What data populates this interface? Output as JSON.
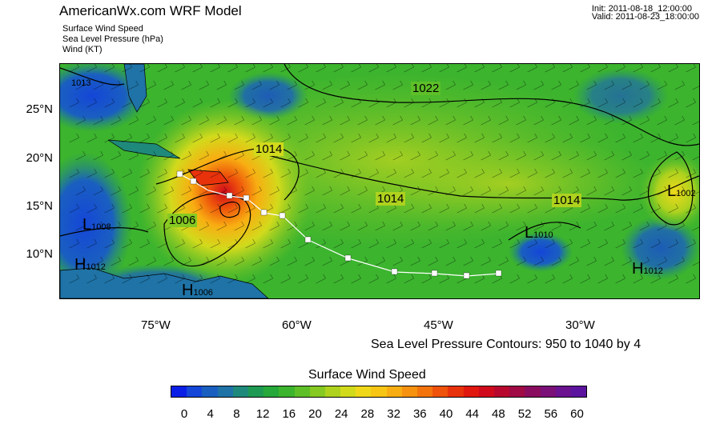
{
  "header": {
    "title": "AmericanWx.com WRF Model",
    "subtitles": [
      "Surface Wind Speed",
      "Sea Level Pressure   (hPa)",
      "Wind   (KT)"
    ],
    "init": "Init: 2011-08-18_12:00:00",
    "valid": "Valid: 2011-08-23_18:00:00"
  },
  "map": {
    "lat_labels": [
      "25°N",
      "20°N",
      "15°N",
      "10°N"
    ],
    "lon_labels": [
      "75°W",
      "60°W",
      "45°W",
      "30°W"
    ],
    "contour_labels": [
      "1013",
      "1022",
      "1014",
      "1014",
      "1014",
      "1006",
      "1008",
      "1010"
    ],
    "pressure_centers": [
      {
        "letter": "L",
        "value": "1010"
      },
      {
        "letter": "L",
        "value": "1008"
      },
      {
        "letter": "L",
        "value": "1002"
      },
      {
        "letter": "H",
        "value": "1012"
      },
      {
        "letter": "H",
        "value": "1012"
      },
      {
        "letter": "H",
        "value": "1006"
      }
    ],
    "contour_note": "Sea Level Pressure Contours: 950 to 1040 by 4"
  },
  "colorbar": {
    "title": "Surface Wind Speed",
    "tick_labels": [
      "0",
      "4",
      "8",
      "12",
      "16",
      "20",
      "24",
      "28",
      "32",
      "36",
      "40",
      "44",
      "48",
      "52",
      "56",
      "60"
    ],
    "colors": [
      "#0a1fe6",
      "#1446d8",
      "#1a5fc0",
      "#1f73a6",
      "#1f8a7c",
      "#1e9a52",
      "#26a83a",
      "#3cb42e",
      "#5ebf28",
      "#86c922",
      "#aed21e",
      "#d2da1c",
      "#efd81a",
      "#f7c615",
      "#f8ae12",
      "#f6920f",
      "#f3740c",
      "#ee520b",
      "#e8320c",
      "#e0180f",
      "#d00a1c",
      "#b8082e",
      "#a00a45",
      "#8a0c5e",
      "#7a1078",
      "#6a1290",
      "#5c149e"
    ]
  }
}
